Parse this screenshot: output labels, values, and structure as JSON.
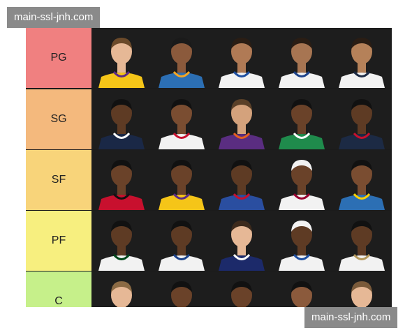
{
  "watermark_top": "main-ssl-jnh.com",
  "watermark_bottom": "main-ssl-jnh.com",
  "tiers": [
    {
      "label": "PG",
      "color": "#f08080",
      "players": [
        {
          "jersey": "#f5c518",
          "trim": "#5b2a86",
          "skin": "#e6b896",
          "hair": "#6b4a2a"
        },
        {
          "jersey": "#2c6fb4",
          "trim": "#f5a623",
          "skin": "#8b5a3c",
          "hair": "#1a1a1a"
        },
        {
          "jersey": "#f2f2f2",
          "trim": "#1e4ea0",
          "skin": "#b07a55",
          "hair": "#2a1d14"
        },
        {
          "jersey": "#f2f2f2",
          "trim": "#1d428a",
          "skin": "#a77552",
          "hair": "#2a1d14"
        },
        {
          "jersey": "#f2f2f2",
          "trim": "#1c2a44",
          "skin": "#b58159",
          "hair": "#2a1d14"
        }
      ]
    },
    {
      "label": "SG",
      "color": "#f4b97d",
      "players": [
        {
          "jersey": "#1a2846",
          "trim": "#ffffff",
          "skin": "#5e3b24",
          "hair": "#111111"
        },
        {
          "jersey": "#f2f2f2",
          "trim": "#c8102e",
          "skin": "#7a4d31",
          "hair": "#111111"
        },
        {
          "jersey": "#5a2d81",
          "trim": "#e56020",
          "skin": "#d4a27c",
          "hair": "#5a4028"
        },
        {
          "jersey": "#1f8b4c",
          "trim": "#ffffff",
          "skin": "#6a4229",
          "hair": "#111111"
        },
        {
          "jersey": "#1c2a44",
          "trim": "#c8102e",
          "skin": "#5e3b24",
          "hair": "#111111"
        }
      ]
    },
    {
      "label": "SF",
      "color": "#f8d47a",
      "players": [
        {
          "jersey": "#c8102e",
          "trim": "#111111",
          "skin": "#6a4229",
          "hair": "#111111"
        },
        {
          "jersey": "#f5c518",
          "trim": "#5b2a86",
          "skin": "#6a4229",
          "hair": "#111111"
        },
        {
          "jersey": "#2a4ea0",
          "trim": "#c8102e",
          "skin": "#5e3b24",
          "hair": "#111111"
        },
        {
          "jersey": "#f2f2f2",
          "trim": "#98002e",
          "skin": "#6a4229",
          "hair": "#f2f2f2"
        },
        {
          "jersey": "#2c6fb4",
          "trim": "#ffd100",
          "skin": "#7a4d31",
          "hair": "#111111"
        }
      ]
    },
    {
      "label": "PF",
      "color": "#f7ef7f",
      "players": [
        {
          "jersey": "#f2f2f2",
          "trim": "#00471b",
          "skin": "#5e3b24",
          "hair": "#111111"
        },
        {
          "jersey": "#f2f2f2",
          "trim": "#1d428a",
          "skin": "#5e3b24",
          "hair": "#111111"
        },
        {
          "jersey": "#1c2a6a",
          "trim": "#ffffff",
          "skin": "#e6b896",
          "hair": "#3d2a1c"
        },
        {
          "jersey": "#f2f2f2",
          "trim": "#1e4ea0",
          "skin": "#5e3b24",
          "hair": "#f2f2f2"
        },
        {
          "jersey": "#f2f2f2",
          "trim": "#b4975a",
          "skin": "#5e3b24",
          "hair": "#111111"
        }
      ]
    },
    {
      "label": "C",
      "color": "#c6f08a",
      "players": [
        {
          "jersey": "#f2f2f2",
          "trim": "#0e2240",
          "skin": "#e6b896",
          "hair": "#8b6a44"
        },
        {
          "jersey": "#f2f2f2",
          "trim": "#006bb6",
          "skin": "#6a4229",
          "hair": "#111111"
        },
        {
          "jersey": "#1c2a44",
          "trim": "#ffffff",
          "skin": "#6a4229",
          "hair": "#111111"
        },
        {
          "jersey": "#1c2a44",
          "trim": "#78be20",
          "skin": "#8b5a3c",
          "hair": "#111111"
        },
        {
          "jersey": "#f2f2f2",
          "trim": "#1d428a",
          "skin": "#e6b896",
          "hair": "#7a5a3a"
        }
      ]
    }
  ]
}
